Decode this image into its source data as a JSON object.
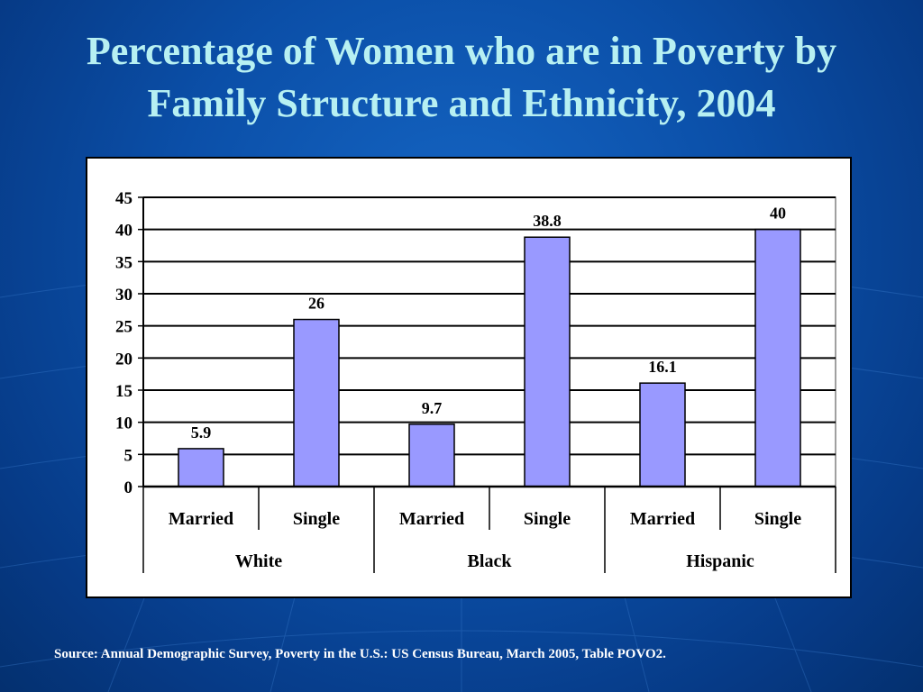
{
  "slide": {
    "title_line1": "Percentage of Women who are in Poverty by",
    "title_line2": "Family Structure and Ethnicity, 2004",
    "source": "Source:  Annual Demographic Survey, Poverty in the U.S.:  US Census Bureau, March 2005, Table POVO2."
  },
  "colors": {
    "bar_fill": "#9999ff",
    "bar_stroke": "#000000",
    "gridline": "#000000",
    "title_text": "#b7f0f2",
    "background": "#0b4fa8"
  },
  "chart_data": {
    "type": "bar",
    "title": "",
    "xlabel": "",
    "ylabel": "",
    "ylim": [
      0,
      45
    ],
    "yticks": [
      0,
      5,
      10,
      15,
      20,
      25,
      30,
      35,
      40,
      45
    ],
    "grid": true,
    "groups": [
      "White",
      "Black",
      "Hispanic"
    ],
    "categories": [
      "Married",
      "Single",
      "Married",
      "Single",
      "Married",
      "Single"
    ],
    "values": [
      5.9,
      26,
      9.7,
      38.8,
      16.1,
      40
    ],
    "data_labels": [
      "5.9",
      "26",
      "9.7",
      "38.8",
      "16.1",
      "40"
    ]
  }
}
